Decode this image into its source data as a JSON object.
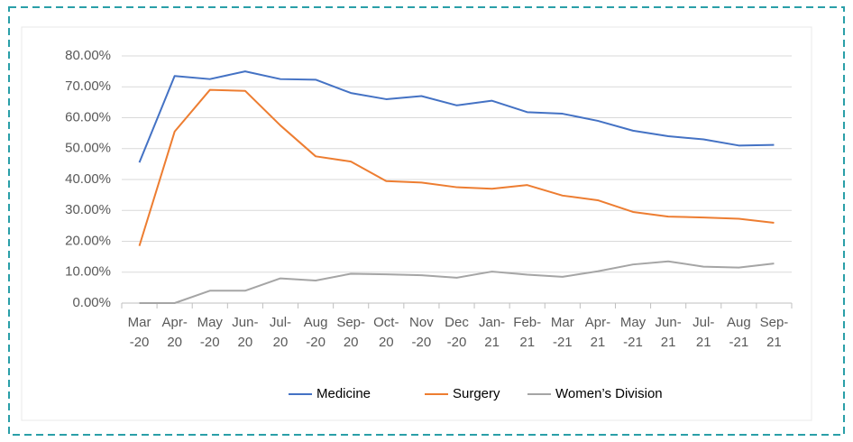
{
  "chart_data": {
    "type": "line",
    "categories": [
      "Mar\n-20",
      "Apr-\n20",
      "May\n-20",
      "Jun-\n20",
      "Jul-\n20",
      "Aug\n-20",
      "Sep-\n20",
      "Oct-\n20",
      "Nov\n-20",
      "Dec\n-20",
      "Jan-\n21",
      "Feb-\n21",
      "Mar\n-21",
      "Apr-\n21",
      "May\n-21",
      "Jun-\n21",
      "Jul-\n21",
      "Aug\n-21",
      "Sep-\n21"
    ],
    "series": [
      {
        "name": "Medicine",
        "color": "#4472c4",
        "values": [
          45.5,
          73.5,
          72.5,
          75,
          72.5,
          72.3,
          68,
          66,
          67,
          64,
          65.5,
          61.8,
          61.3,
          59,
          55.8,
          54,
          53,
          51,
          51.2
        ]
      },
      {
        "name": "Surgery",
        "color": "#ed7d31",
        "values": [
          18.5,
          55.5,
          69,
          68.7,
          57.5,
          47.5,
          45.8,
          39.5,
          39,
          37.5,
          37,
          38.2,
          34.8,
          33.3,
          29.5,
          28,
          27.7,
          27.3,
          26
        ]
      },
      {
        "name": "Women’s Division",
        "color": "#a5a5a5",
        "values": [
          0,
          0,
          4,
          4,
          8,
          7.3,
          9.5,
          9.3,
          9,
          8.2,
          10.2,
          9.2,
          8.5,
          10.3,
          12.5,
          13.5,
          11.8,
          11.5,
          12.8
        ]
      }
    ],
    "ylim": [
      0,
      80
    ],
    "yticks": [
      {
        "value": 0,
        "label": "0.00%"
      },
      {
        "value": 10,
        "label": "10.00%"
      },
      {
        "value": 20,
        "label": "20.00%"
      },
      {
        "value": 30,
        "label": "30.00%"
      },
      {
        "value": 40,
        "label": "40.00%"
      },
      {
        "value": 50,
        "label": "50.00%"
      },
      {
        "value": 60,
        "label": "60.00%"
      },
      {
        "value": 70,
        "label": "70.00%"
      },
      {
        "value": 80,
        "label": "80.00%"
      }
    ],
    "grid": true,
    "legend": "bottom"
  }
}
